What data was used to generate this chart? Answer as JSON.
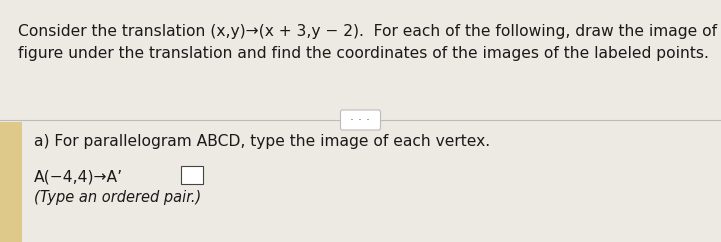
{
  "bg_color": "#ede9e3",
  "bg_color_upper": "#eae6e0",
  "yellow_strip_color": "#dfc98a",
  "line1": "Consider the translation (x,y)→(x + 3,y − 2).  For each of the following, draw the image of the",
  "line2": "figure under the translation and find the coordinates of the images of the labeled points.",
  "dots_label": "· · ·",
  "section_a": "a) For parallelogram ABCD, type the image of each vertex.",
  "vertex_line": "A(−4,4)→A’",
  "hint_line": "(Type an ordered pair.)",
  "text_color": "#1a1a1a",
  "divider_color": "#bbbbbb",
  "font_size_main": 11.2,
  "font_size_section": 11.2,
  "font_size_vertex": 11.2,
  "font_size_hint": 10.5,
  "font_size_dots": 9
}
